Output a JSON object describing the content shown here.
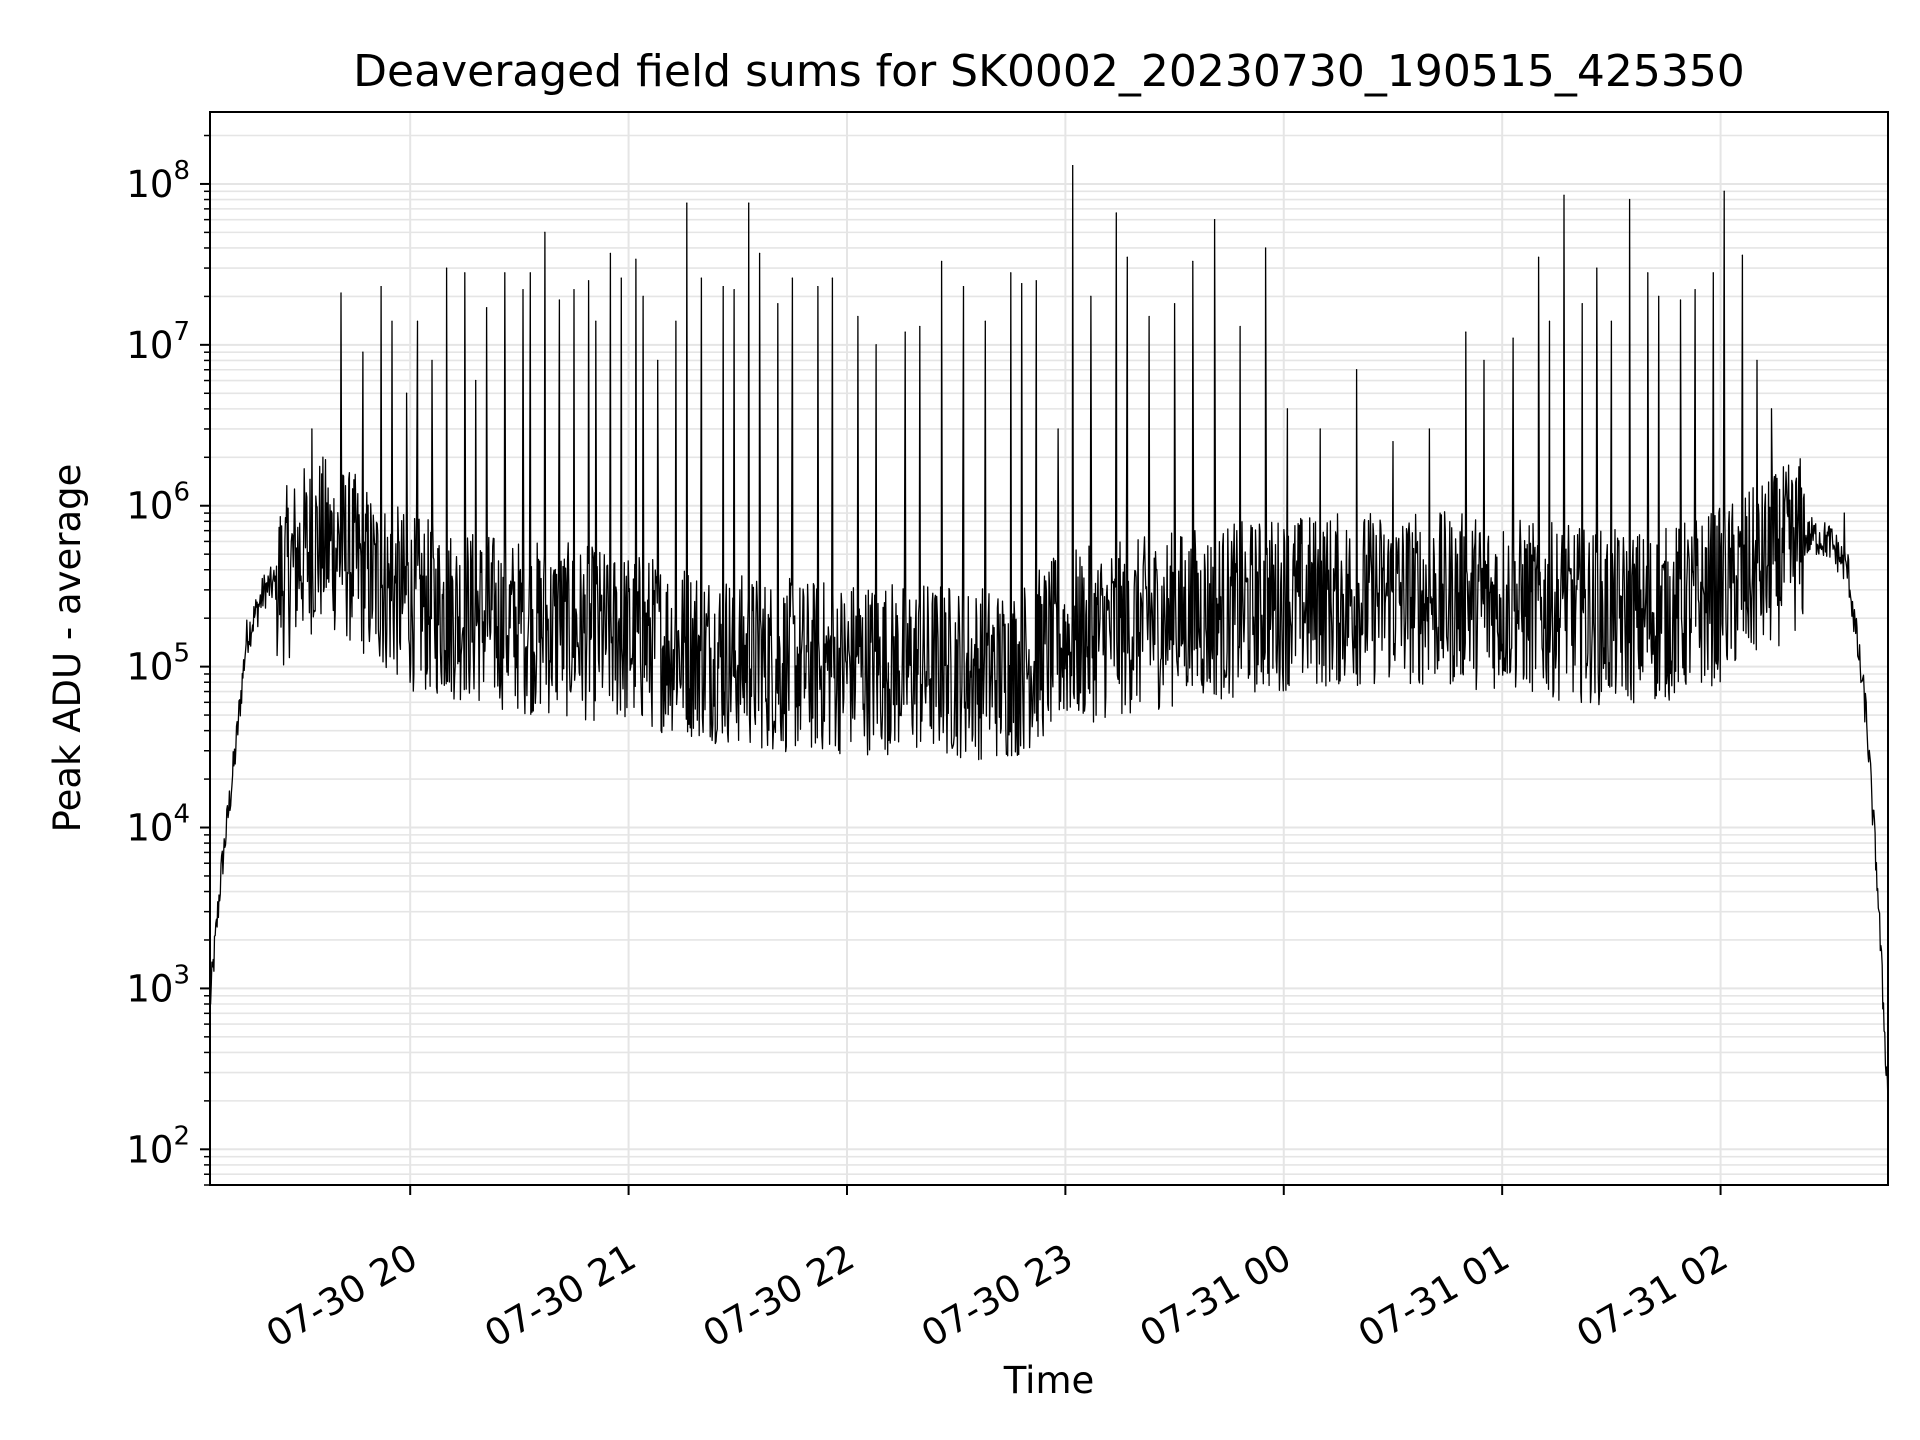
{
  "chart_data": {
    "type": "line",
    "title": "Deaveraged field sums for SK0002_20230730_190515_425350",
    "xlabel": "Time",
    "ylabel": "Peak ADU - average",
    "yscale": "log",
    "ylim": [
      60,
      280000000
    ],
    "xlim": [
      "2023-07-30 19:05",
      "2023-07-31 02:46"
    ],
    "grid": true,
    "line_color": "#000000",
    "grid_color": "#e5e5e5",
    "x_ticks": [
      {
        "value": "2023-07-30 20:00",
        "label": "07-30 20"
      },
      {
        "value": "2023-07-30 21:00",
        "label": "07-30 21"
      },
      {
        "value": "2023-07-30 22:00",
        "label": "07-30 22"
      },
      {
        "value": "2023-07-30 23:00",
        "label": "07-30 23"
      },
      {
        "value": "2023-07-31 00:00",
        "label": "07-31 00"
      },
      {
        "value": "2023-07-31 01:00",
        "label": "07-31 01"
      },
      {
        "value": "2023-07-31 02:00",
        "label": "07-31 02"
      }
    ],
    "y_ticks": [
      {
        "value": 100,
        "base": "10",
        "exp": "2"
      },
      {
        "value": 1000,
        "base": "10",
        "exp": "3"
      },
      {
        "value": 10000,
        "base": "10",
        "exp": "4"
      },
      {
        "value": 100000,
        "base": "10",
        "exp": "5"
      },
      {
        "value": 1000000,
        "base": "10",
        "exp": "6"
      },
      {
        "value": 10000000,
        "base": "10",
        "exp": "7"
      },
      {
        "value": 100000000,
        "base": "10",
        "exp": "8"
      }
    ],
    "series": [
      {
        "x": [
          "2023-07-30 19:05",
          "2023-07-30 19:08",
          "2023-07-30 19:12",
          "2023-07-30 19:15",
          "2023-07-30 19:20",
          "2023-07-30 19:25",
          "2023-07-30 19:30",
          "2023-07-30 19:35",
          "2023-07-30 19:40",
          "2023-07-30 19:45",
          "2023-07-30 19:50",
          "2023-07-30 19:55",
          "2023-07-30 20:00",
          "2023-07-30 20:10",
          "2023-07-30 20:20",
          "2023-07-30 20:30",
          "2023-07-30 20:40",
          "2023-07-30 20:50",
          "2023-07-30 21:00",
          "2023-07-30 21:15",
          "2023-07-30 21:30",
          "2023-07-30 21:45",
          "2023-07-30 22:00",
          "2023-07-30 22:15",
          "2023-07-30 22:30",
          "2023-07-30 22:45",
          "2023-07-30 23:00",
          "2023-07-30 23:15",
          "2023-07-30 23:30",
          "2023-07-30 23:45",
          "2023-07-31 00:00",
          "2023-07-31 00:15",
          "2023-07-31 00:30",
          "2023-07-31 00:45",
          "2023-07-31 01:00",
          "2023-07-31 01:15",
          "2023-07-31 01:30",
          "2023-07-31 01:45",
          "2023-07-31 02:00",
          "2023-07-31 02:10",
          "2023-07-31 02:20",
          "2023-07-31 02:25",
          "2023-07-31 02:30",
          "2023-07-31 02:35",
          "2023-07-31 02:40",
          "2023-07-31 02:43",
          "2023-07-31 02:46"
        ],
        "y": [
          800,
          5000,
          30000,
          150000,
          300000,
          350000,
          500000,
          600000,
          550000,
          450000,
          350000,
          300000,
          250000,
          220000,
          200000,
          180000,
          170000,
          160000,
          150000,
          130000,
          110000,
          100000,
          100000,
          100000,
          95000,
          90000,
          150000,
          170000,
          200000,
          220000,
          250000,
          260000,
          270000,
          260000,
          250000,
          220000,
          200000,
          210000,
          280000,
          380000,
          550000,
          650000,
          600000,
          400000,
          50000,
          5000,
          200
        ]
      }
    ],
    "spikes": [
      [
        "2023-07-30 19:33",
        3000000
      ],
      [
        "2023-07-30 19:41",
        21000000
      ],
      [
        "2023-07-30 19:47",
        9000000
      ],
      [
        "2023-07-30 19:52",
        23000000
      ],
      [
        "2023-07-30 19:55",
        14000000
      ],
      [
        "2023-07-30 19:59",
        5000000
      ],
      [
        "2023-07-30 20:02",
        14000000
      ],
      [
        "2023-07-30 20:06",
        8000000
      ],
      [
        "2023-07-30 20:10",
        30000000
      ],
      [
        "2023-07-30 20:15",
        28000000
      ],
      [
        "2023-07-30 20:18",
        6000000
      ],
      [
        "2023-07-30 20:21",
        17000000
      ],
      [
        "2023-07-30 20:26",
        28000000
      ],
      [
        "2023-07-30 20:31",
        22000000
      ],
      [
        "2023-07-30 20:33",
        28000000
      ],
      [
        "2023-07-30 20:37",
        50000000
      ],
      [
        "2023-07-30 20:41",
        19000000
      ],
      [
        "2023-07-30 20:45",
        22000000
      ],
      [
        "2023-07-30 20:49",
        25000000
      ],
      [
        "2023-07-30 20:51",
        14000000
      ],
      [
        "2023-07-30 20:55",
        37000000
      ],
      [
        "2023-07-30 20:58",
        26000000
      ],
      [
        "2023-07-30 21:02",
        34000000
      ],
      [
        "2023-07-30 21:04",
        20000000
      ],
      [
        "2023-07-30 21:08",
        8000000
      ],
      [
        "2023-07-30 21:13",
        14000000
      ],
      [
        "2023-07-30 21:16",
        76000000
      ],
      [
        "2023-07-30 21:20",
        26000000
      ],
      [
        "2023-07-30 21:26",
        23000000
      ],
      [
        "2023-07-30 21:29",
        22000000
      ],
      [
        "2023-07-30 21:33",
        76000000
      ],
      [
        "2023-07-30 21:36",
        37000000
      ],
      [
        "2023-07-30 21:41",
        18000000
      ],
      [
        "2023-07-30 21:45",
        26000000
      ],
      [
        "2023-07-30 21:52",
        23000000
      ],
      [
        "2023-07-30 21:56",
        26000000
      ],
      [
        "2023-07-30 22:03",
        15000000
      ],
      [
        "2023-07-30 22:08",
        10000000
      ],
      [
        "2023-07-30 22:16",
        12000000
      ],
      [
        "2023-07-30 22:20",
        13000000
      ],
      [
        "2023-07-30 22:26",
        33000000
      ],
      [
        "2023-07-30 22:32",
        23000000
      ],
      [
        "2023-07-30 22:38",
        14000000
      ],
      [
        "2023-07-30 22:45",
        28000000
      ],
      [
        "2023-07-30 22:48",
        24000000
      ],
      [
        "2023-07-30 22:52",
        25000000
      ],
      [
        "2023-07-30 22:58",
        3000000
      ],
      [
        "2023-07-30 23:02",
        130000000
      ],
      [
        "2023-07-30 23:07",
        20000000
      ],
      [
        "2023-07-30 23:14",
        66000000
      ],
      [
        "2023-07-30 23:17",
        35000000
      ],
      [
        "2023-07-30 23:23",
        15000000
      ],
      [
        "2023-07-30 23:30",
        18000000
      ],
      [
        "2023-07-30 23:35",
        33000000
      ],
      [
        "2023-07-30 23:41",
        60000000
      ],
      [
        "2023-07-30 23:48",
        13000000
      ],
      [
        "2023-07-30 23:55",
        40000000
      ],
      [
        "2023-07-31 00:01",
        4000000
      ],
      [
        "2023-07-31 00:10",
        3000000
      ],
      [
        "2023-07-31 00:20",
        7000000
      ],
      [
        "2023-07-31 00:30",
        2500000
      ],
      [
        "2023-07-31 00:40",
        3000000
      ],
      [
        "2023-07-31 00:50",
        12000000
      ],
      [
        "2023-07-31 00:55",
        8000000
      ],
      [
        "2023-07-31 01:03",
        11000000
      ],
      [
        "2023-07-31 01:10",
        35000000
      ],
      [
        "2023-07-31 01:13",
        14000000
      ],
      [
        "2023-07-31 01:17",
        85000000
      ],
      [
        "2023-07-31 01:22",
        18000000
      ],
      [
        "2023-07-31 01:26",
        30000000
      ],
      [
        "2023-07-31 01:30",
        14000000
      ],
      [
        "2023-07-31 01:35",
        80000000
      ],
      [
        "2023-07-31 01:40",
        28000000
      ],
      [
        "2023-07-31 01:43",
        20000000
      ],
      [
        "2023-07-31 01:49",
        19000000
      ],
      [
        "2023-07-31 01:53",
        22000000
      ],
      [
        "2023-07-31 01:58",
        28000000
      ],
      [
        "2023-07-31 02:01",
        90000000
      ],
      [
        "2023-07-31 02:06",
        36000000
      ],
      [
        "2023-07-31 02:10",
        8000000
      ],
      [
        "2023-07-31 02:14",
        4000000
      ],
      [
        "2023-07-31 02:34",
        900000
      ],
      [
        "2023-07-31 02:40",
        60000
      ]
    ]
  }
}
